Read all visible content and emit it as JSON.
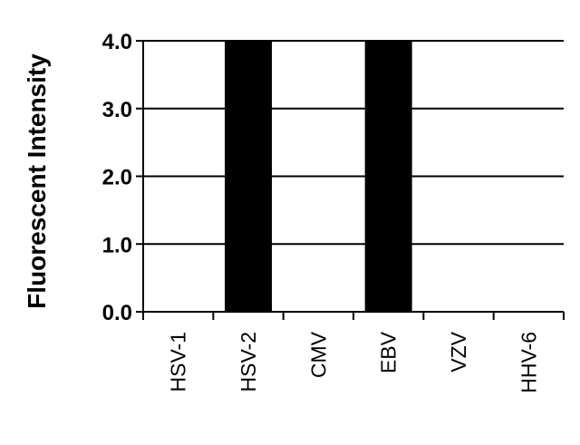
{
  "chart_data": {
    "type": "bar",
    "categories": [
      "HSV-1",
      "HSV-2",
      "CMV",
      "EBV",
      "VZV",
      "HHV-6"
    ],
    "values": [
      0,
      4.0,
      0,
      4.0,
      0,
      0
    ],
    "title": "",
    "xlabel": "",
    "ylabel": "Fluorescent Intensity",
    "ylim": [
      0,
      4.0
    ],
    "yticks": [
      "0.0",
      "1.0",
      "2.0",
      "3.0",
      "4.0"
    ],
    "grid": true,
    "bar_color": "#000000"
  }
}
